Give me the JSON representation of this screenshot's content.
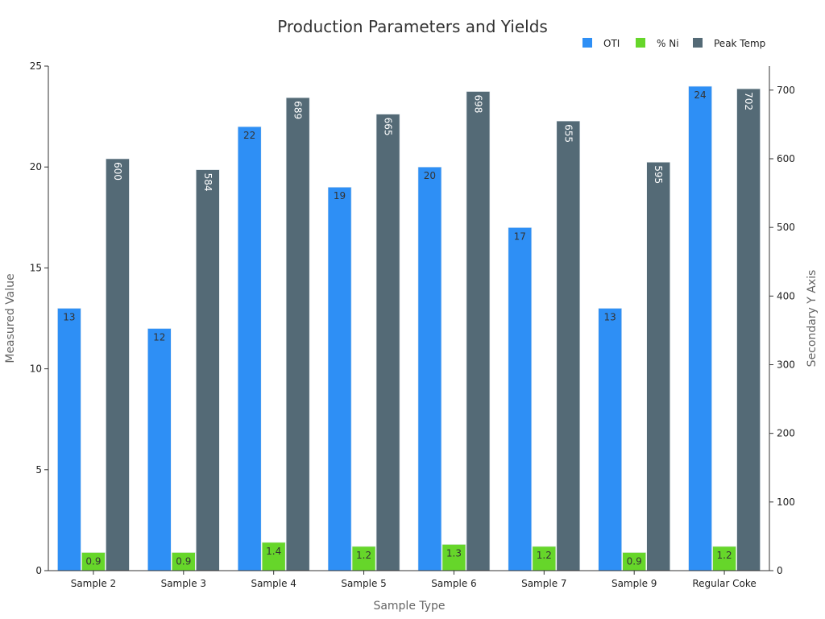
{
  "chart_data": {
    "type": "bar",
    "title": "Production Parameters and Yields",
    "xlabel": "Sample Type",
    "ylabel": "Measured Value",
    "y2label": "Secondary Y Axis",
    "categories": [
      "Sample 2",
      "Sample 3",
      "Sample 4",
      "Sample 5",
      "Sample 6",
      "Sample 7",
      "Sample 9",
      "Regular Coke"
    ],
    "series": [
      {
        "name": "OTI",
        "axis": "left",
        "color": "#2e8ff5",
        "label_color": "#333333",
        "values": [
          13,
          12,
          22,
          19,
          20,
          17,
          13,
          24
        ]
      },
      {
        "name": "% Ni",
        "axis": "left",
        "color": "#66d62a",
        "label_color": "#333333",
        "values": [
          0.9,
          0.9,
          1.4,
          1.2,
          1.3,
          1.2,
          0.9,
          1.2
        ]
      },
      {
        "name": "Peak Temp",
        "axis": "right",
        "color": "#546a76",
        "label_color": "#ffffff",
        "values": [
          600,
          584,
          689,
          665,
          698,
          655,
          595,
          702
        ]
      }
    ],
    "ylim": [
      0,
      25
    ],
    "y2lim": [
      0,
      735
    ],
    "yticks": [
      0,
      5,
      10,
      15,
      20,
      25
    ],
    "y2ticks": [
      0,
      100,
      200,
      300,
      400,
      500,
      600,
      700
    ],
    "grid": false,
    "legend_position": "top-right"
  }
}
